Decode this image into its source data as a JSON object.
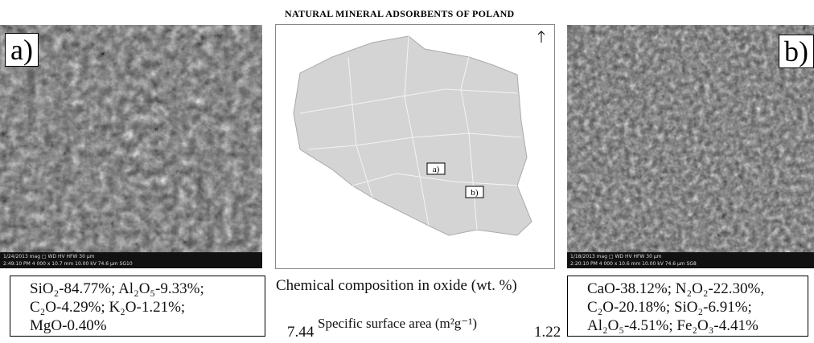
{
  "header": {
    "title": "NATURAL MINERAL ADSORBENTS OF POLAND"
  },
  "panel_a": {
    "label": "a)",
    "info": [
      "1/24/2013  mag □  WD    HV     HFW                          30 µm",
      "2:49:10 PM 4 000 x 10.7 mm 10.00 kV 74.6 µm              SG10"
    ],
    "composition": [
      "SiO₂-84.77%; Al₂O₅-9.33%;",
      "C₂O-4.29%; K₂O-1.21%;",
      "MgO-0.40%"
    ],
    "surface_area": "7.44"
  },
  "panel_b": {
    "label": "b)",
    "info": [
      "1/18/2013  mag □  WD    HV     HFW                          30 µm",
      "2:20:10 PM 4 000 x 10.6 mm 10.00 kV 74.6 µm              SG8"
    ],
    "composition": [
      "CaO-38.12%; N₂O₂-22.30%,",
      "C₂O-20.18%; SiO₂-6.91%;",
      "Al₂O₅-4.51%; Fe₂O₃-4.41%"
    ],
    "surface_area": "1.22"
  },
  "map": {
    "markers": [
      "a)",
      "b)"
    ]
  },
  "captions": {
    "composition": "Chemical composition in oxide (wt. %)",
    "surface": "Specific surface area (m²g⁻¹)"
  }
}
